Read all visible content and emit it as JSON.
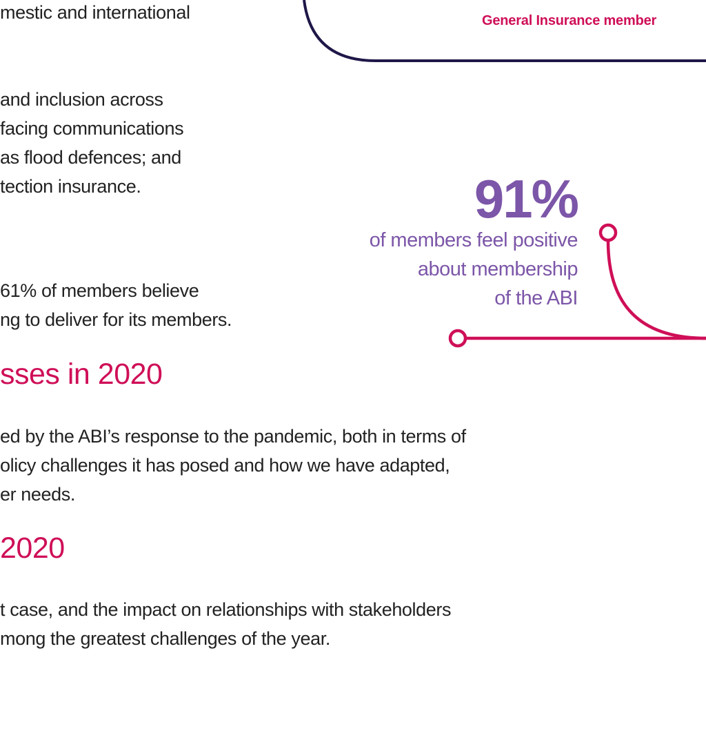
{
  "colors": {
    "accent_pink": "#cf0f58",
    "accent_purple": "#7c56a8",
    "navy": "#1f1748",
    "body_text": "#222222"
  },
  "quote_card": {
    "member_label": "General Insurance member"
  },
  "paragraphs": {
    "p1": [
      "mestic and international"
    ],
    "p2": [
      "and inclusion across",
      "facing communications",
      "as flood defences; and",
      "tection insurance."
    ],
    "p3": [
      "61% of members believe",
      "ng to deliver for its members."
    ],
    "p4": [
      "ed by the ABI’s response to the pandemic, both in terms of",
      "olicy challenges it has posed and how we have adapted,",
      "er needs."
    ],
    "p5": [
      "t case, and the impact on relationships with stakeholders",
      "mong the greatest challenges of the year."
    ]
  },
  "headings": {
    "h1": "sses in 2020",
    "h2": "2020"
  },
  "stat": {
    "value": "91%",
    "caption": [
      "of members feel positive",
      "about membership",
      "of the ABI"
    ]
  }
}
